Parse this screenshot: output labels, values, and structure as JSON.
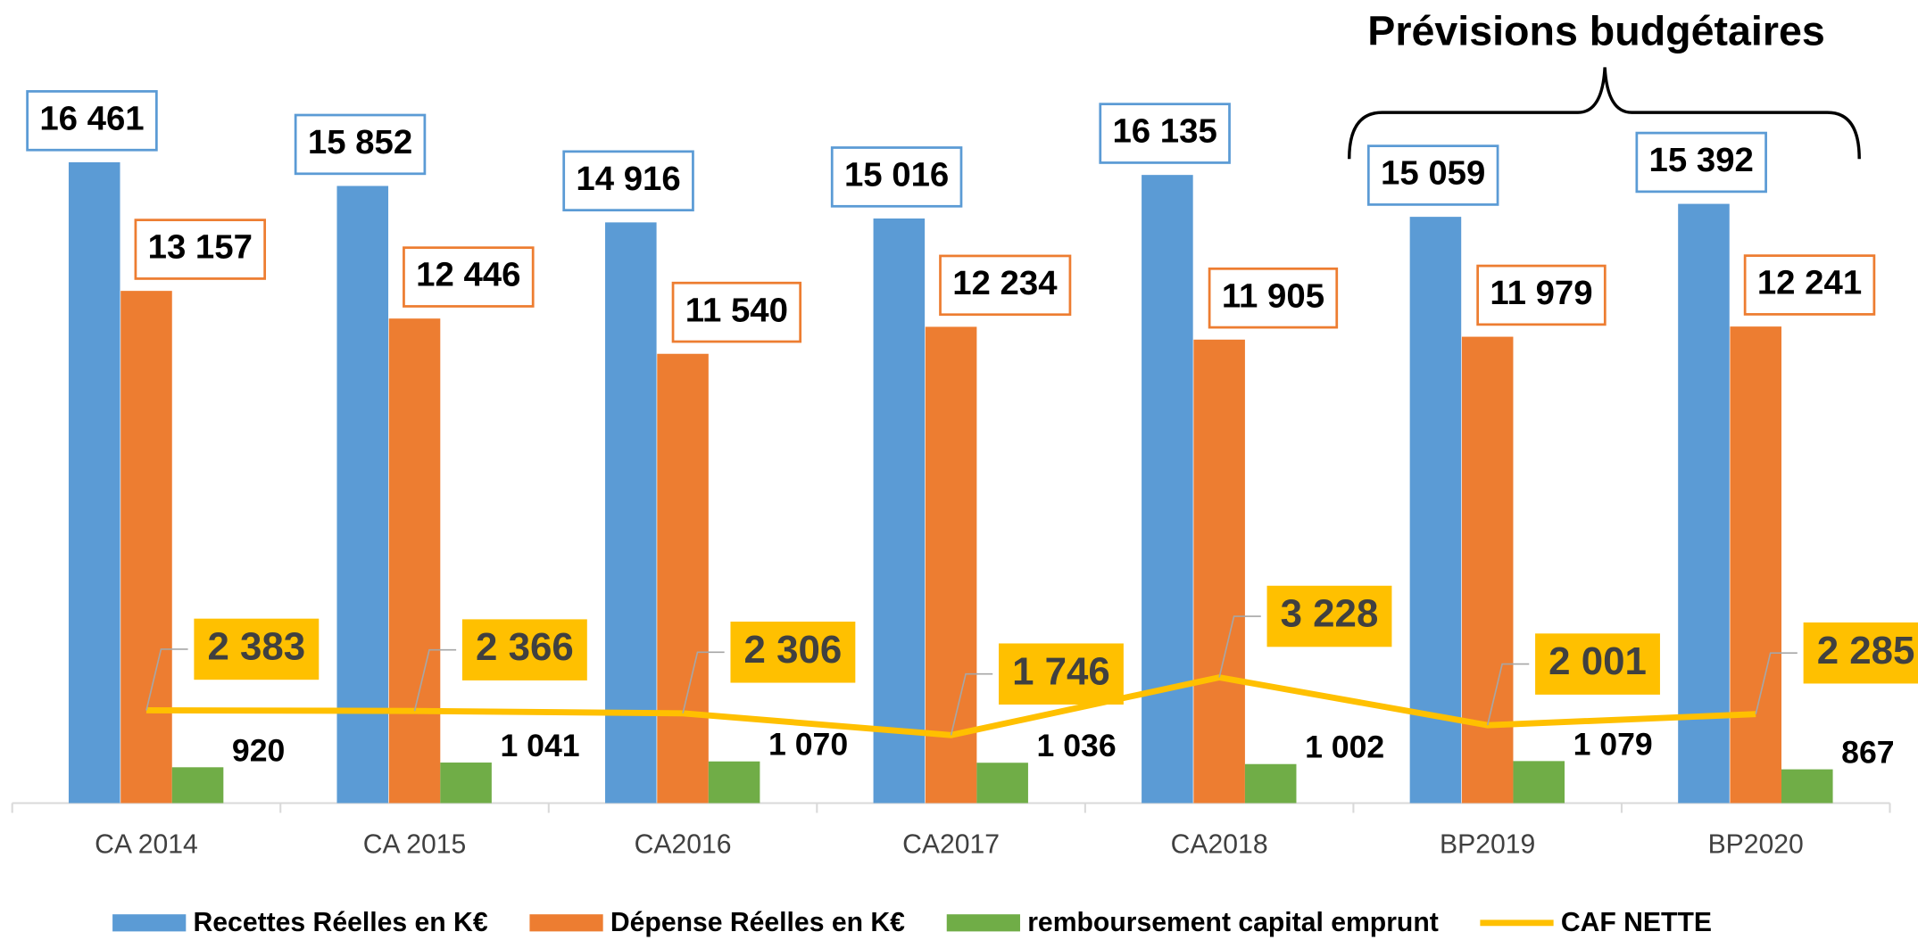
{
  "chart_data": {
    "type": "bar",
    "annotation": "Prévisions budgétaires",
    "categories": [
      "CA 2014",
      "CA 2015",
      "CA2016",
      "CA2017",
      "CA2018",
      "BP2019",
      "BP2020"
    ],
    "series": [
      {
        "name": "Recettes Réelles en K€",
        "color": "#5b9bd5",
        "values": [
          16461,
          15852,
          14916,
          15016,
          16135,
          15059,
          15392
        ],
        "value_labels": [
          "16 461",
          "15 852",
          "14 916",
          "15 016",
          "16 135",
          "15 059",
          "15 392"
        ]
      },
      {
        "name": "Dépense Réelles en K€",
        "color": "#ed7d31",
        "values": [
          13157,
          12446,
          11540,
          12234,
          11905,
          11979,
          12241
        ],
        "value_labels": [
          "13 157",
          "12 446",
          "11 540",
          "12 234",
          "11 905",
          "11 979",
          "12 241"
        ]
      },
      {
        "name": "remboursement capital emprunt",
        "color": "#70ad47",
        "values": [
          920,
          1041,
          1070,
          1036,
          1002,
          1079,
          867
        ],
        "value_labels": [
          "920",
          "1 041",
          "1 070",
          "1 036",
          "1 002",
          "1 079",
          "867"
        ]
      },
      {
        "name": "CAF NETTE",
        "type": "line",
        "color": "#ffc000",
        "values": [
          2383,
          2366,
          2306,
          1746,
          3228,
          2001,
          2285
        ],
        "value_labels": [
          "2 383",
          "2 366",
          "2 306",
          "1 746",
          "3 228",
          "2 001",
          "2 285"
        ]
      }
    ],
    "ylim": [
      0,
      20000
    ]
  }
}
